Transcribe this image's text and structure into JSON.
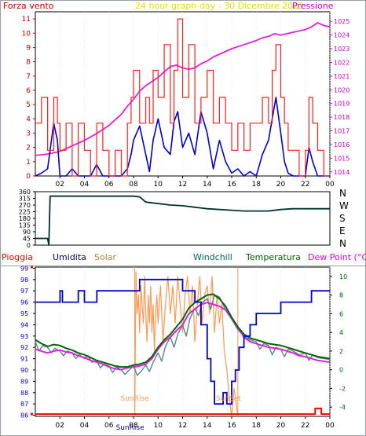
{
  "chart_data": [
    {
      "type": "line",
      "title": "24 hour graph day - 30 Dicembre 2021",
      "left_label": "Forza vento",
      "right_label": "Pressione",
      "x_ticks": [
        "02",
        "04",
        "06",
        "08",
        "10",
        "12",
        "14",
        "16",
        "18",
        "20",
        "22",
        "00"
      ],
      "y_left_ticks": [
        "0",
        "1",
        "2",
        "3",
        "4",
        "5",
        "6",
        "7",
        "8",
        "9",
        "10",
        "11"
      ],
      "y_left_range": [
        0,
        11.5
      ],
      "y_right_ticks": [
        "1014",
        "1015",
        "1016",
        "1017",
        "1018",
        "1019",
        "1020",
        "1021",
        "1022",
        "1023",
        "1024",
        "1025"
      ],
      "y_right_range": [
        1013.7,
        1025.7
      ],
      "colors": {
        "wind_max": "#ff2020",
        "wind_avg": "#0000cc",
        "pressure": "#e020e0",
        "axis_left": "#cc0000",
        "axis_right": "#cc00cc"
      },
      "series": [
        {
          "key": "pressure",
          "axis": "right",
          "x": [
            0,
            1,
            2,
            3,
            4,
            5,
            6,
            7,
            7.5,
            8,
            8.5,
            9,
            9.5,
            10,
            10.5,
            11,
            11.5,
            12,
            12.5,
            13,
            13.5,
            14,
            14.5,
            15,
            15.5,
            16,
            17,
            18,
            18.5,
            19,
            19.5,
            20,
            21,
            22,
            22.5,
            23,
            23.5,
            24
          ],
          "values": [
            1015.2,
            1015.3,
            1015.5,
            1015.9,
            1016.3,
            1016.8,
            1017.4,
            1018.2,
            1018.8,
            1019.3,
            1019.9,
            1020.3,
            1020.6,
            1020.9,
            1021.3,
            1021.7,
            1021.8,
            1021.6,
            1021.5,
            1021.6,
            1021.9,
            1022.1,
            1022.4,
            1022.6,
            1022.8,
            1023.0,
            1023.3,
            1023.6,
            1023.8,
            1023.9,
            1024.1,
            1024.0,
            1024.2,
            1024.4,
            1024.6,
            1024.9,
            1024.7,
            1024.6
          ]
        },
        {
          "key": "wind_avg",
          "axis": "left",
          "x": [
            0,
            0.5,
            1,
            1.5,
            1.8,
            2,
            2.5,
            3,
            3.5,
            4,
            4.5,
            5,
            5.5,
            6,
            6.5,
            7,
            7.5,
            7.8,
            8,
            8.5,
            9,
            9.3,
            9.6,
            10,
            10.5,
            11,
            11.3,
            11.6,
            12,
            12.5,
            13,
            13.5,
            14,
            14.5,
            15,
            15.5,
            16,
            16.5,
            17,
            17.5,
            18,
            18.5,
            19,
            19.3,
            19.6,
            20,
            20.3,
            20.6,
            21,
            21.5,
            22,
            22.3,
            22.6,
            23,
            23.5,
            24
          ],
          "values": [
            0,
            0.2,
            0.5,
            3.7,
            2.5,
            0,
            0,
            0.5,
            0,
            0,
            0,
            0.8,
            0,
            0,
            0,
            0,
            0.5,
            1.5,
            2.5,
            3.5,
            1.5,
            0.3,
            2.5,
            4.0,
            2.0,
            1.5,
            3.8,
            4.5,
            2.0,
            3.0,
            1.5,
            4.5,
            3.0,
            0.5,
            2.5,
            1.0,
            0.2,
            0.5,
            0,
            0.3,
            0,
            1.5,
            2.5,
            4.0,
            5.5,
            3.0,
            1.0,
            0.2,
            0,
            0,
            0,
            2.0,
            1.0,
            0,
            0,
            0
          ]
        },
        {
          "key": "wind_max",
          "axis": "left",
          "x": [
            0,
            0.5,
            1,
            1.5,
            1.8,
            2,
            2.5,
            3,
            3.5,
            4,
            4.5,
            5,
            5.5,
            6,
            6.5,
            7,
            7.5,
            7.8,
            8,
            8.5,
            9,
            9.3,
            9.6,
            10,
            10.5,
            11,
            11.3,
            11.6,
            12,
            12.5,
            13,
            13.5,
            14,
            14.5,
            15,
            15.5,
            16,
            16.5,
            17,
            17.5,
            18,
            18.5,
            19,
            19.3,
            19.6,
            20,
            20.3,
            20.6,
            21,
            21.5,
            22,
            22.3,
            22.6,
            23,
            23.5,
            24
          ],
          "values": [
            3.7,
            5.5,
            1.8,
            5.5,
            3.7,
            1.8,
            3.7,
            0,
            3.7,
            1.8,
            0,
            3.7,
            1.8,
            0,
            1.8,
            0,
            3.7,
            5.5,
            7.4,
            3.7,
            5.5,
            3.7,
            7.4,
            5.5,
            9.2,
            3.7,
            7.4,
            11.0,
            5.5,
            9.2,
            3.7,
            5.5,
            7.4,
            3.7,
            5.5,
            3.7,
            1.8,
            3.7,
            1.8,
            3.7,
            3.7,
            5.5,
            3.7,
            7.4,
            9.2,
            5.5,
            3.7,
            1.8,
            1.8,
            0,
            1.8,
            5.5,
            3.7,
            1.8,
            0,
            0
          ]
        }
      ]
    },
    {
      "type": "line",
      "y_ticks": [
        "360",
        "315",
        "270",
        "225",
        "180",
        "135",
        "90",
        "45",
        "0"
      ],
      "y_range": [
        0,
        360
      ],
      "compass": [
        "N",
        "W",
        "S",
        "E",
        "N"
      ],
      "colors": {
        "direction": "#003030",
        "axis": "#cc0000"
      },
      "series": [
        {
          "key": "direction",
          "x": [
            0,
            1,
            1.1,
            1.2,
            8,
            8.5,
            9,
            9.5,
            10,
            11,
            12,
            13,
            14,
            15,
            16,
            17,
            18,
            19,
            20,
            21,
            22,
            23,
            24
          ],
          "values": [
            45,
            45,
            0,
            330,
            330,
            325,
            290,
            285,
            280,
            270,
            265,
            255,
            245,
            240,
            235,
            230,
            230,
            230,
            240,
            245,
            245,
            245,
            245
          ]
        }
      ]
    },
    {
      "type": "line",
      "labels": {
        "rain": "Pioggia",
        "humidity": "Umidita",
        "solar": "Solar",
        "windchill": "Windchill",
        "temperature": "Temperatura",
        "dewpoint": "Dew Point (°C)"
      },
      "x_ticks": [
        "02",
        "04",
        "06",
        "08",
        "10",
        "12",
        "14",
        "16",
        "18",
        "20",
        "22",
        "00"
      ],
      "y_left_ticks": [
        "86",
        "87",
        "88",
        "89",
        "90",
        "91",
        "92",
        "93",
        "94",
        "95",
        "96",
        "97",
        "98",
        "99"
      ],
      "y_left_range": [
        85.9,
        99.1
      ],
      "y_right_ticks": [
        "10",
        "8",
        "6",
        "4",
        "2",
        "0",
        "-2",
        "-4"
      ],
      "y_right_range": [
        -5,
        11
      ],
      "sunrise_label": "SunRise",
      "sunset_label": "SunSet",
      "sunrise_hour": 8.1,
      "sunset_hour": 16.5,
      "colors": {
        "rain": "#ff0000",
        "humidity": "#0000cc",
        "solar": "#ff9955",
        "windchill": "#558888",
        "temperature": "#006600",
        "dewpoint": "#e020e0",
        "label_rain": "#ff0000",
        "label_humidity": "#000080",
        "label_solar": "#aa8844",
        "label_windchill": "#006666",
        "label_temperature": "#006600",
        "label_dewpoint": "#ee00ee"
      },
      "series": [
        {
          "key": "humidity",
          "axis": "left",
          "x": [
            0,
            2,
            2.01,
            2.2,
            2.21,
            3,
            3.5,
            4,
            4.5,
            5,
            5.01,
            6,
            8,
            8.5,
            9,
            9.5,
            10,
            11,
            12,
            12.5,
            13,
            13.5,
            14,
            14.3,
            14.6,
            15,
            15.3,
            15.6,
            16,
            16.3,
            16.6,
            17,
            17.5,
            18,
            19,
            20,
            21,
            22,
            22.5,
            23,
            24
          ],
          "values": [
            96,
            96,
            97,
            97,
            96,
            96,
            97,
            96,
            96,
            96,
            97,
            97,
            97,
            98,
            98,
            98,
            98,
            98,
            97,
            97,
            96,
            94,
            91,
            89,
            87,
            87,
            88,
            87,
            89,
            90,
            92,
            93,
            94,
            95,
            95,
            96,
            96,
            96,
            97,
            97,
            97
          ]
        },
        {
          "key": "dewpoint",
          "axis": "right",
          "x": [
            0,
            0.5,
            1,
            1.5,
            2,
            2.5,
            3,
            3.5,
            4,
            4.5,
            5,
            5.5,
            6,
            6.5,
            7,
            7.5,
            8,
            8.5,
            9,
            9.5,
            10,
            10.5,
            11,
            11.5,
            12,
            12.5,
            13,
            13.5,
            14,
            14.5,
            15,
            15.5,
            16,
            16.5,
            17,
            17.5,
            18,
            18.5,
            19,
            19.5,
            20,
            20.5,
            21,
            21.5,
            22,
            22.5,
            23,
            23.5,
            24
          ],
          "values": [
            2.2,
            2.0,
            1.8,
            2.0,
            2.1,
            1.9,
            1.8,
            1.5,
            1.3,
            1.0,
            0.8,
            0.6,
            0.3,
            0.1,
            0.0,
            0.2,
            0.3,
            0.4,
            0.6,
            1.2,
            2.2,
            3.0,
            3.5,
            4.2,
            4.8,
            6.0,
            6.5,
            7.0,
            7.2,
            7.0,
            6.8,
            6.4,
            5.5,
            4.5,
            3.5,
            3.0,
            2.8,
            2.6,
            2.4,
            2.3,
            2.2,
            2.0,
            1.8,
            1.5,
            1.4,
            1.2,
            1.0,
            0.9,
            0.8
          ]
        },
        {
          "key": "temperature",
          "axis": "right",
          "x": [
            0,
            0.5,
            1,
            1.5,
            2,
            2.5,
            3,
            3.5,
            4,
            4.5,
            5,
            5.5,
            6,
            6.5,
            7,
            7.5,
            8,
            8.5,
            9,
            9.5,
            10,
            10.5,
            11,
            11.5,
            12,
            12.5,
            13,
            13.5,
            14,
            14.5,
            15,
            15.5,
            16,
            16.5,
            17,
            17.5,
            18,
            18.5,
            19,
            19.5,
            20,
            20.5,
            21,
            21.5,
            22,
            22.5,
            23,
            23.5,
            24
          ],
          "values": [
            3.2,
            2.8,
            2.5,
            2.7,
            2.6,
            2.3,
            2.1,
            1.8,
            1.6,
            1.3,
            1.0,
            0.8,
            0.6,
            0.4,
            0.3,
            0.3,
            0.5,
            0.6,
            0.8,
            1.4,
            2.4,
            3.2,
            3.8,
            4.6,
            5.4,
            6.6,
            7.2,
            7.6,
            8.0,
            8.1,
            7.6,
            6.8,
            5.6,
            4.6,
            3.8,
            3.4,
            3.2,
            3.0,
            2.8,
            2.7,
            2.6,
            2.4,
            2.2,
            2.0,
            1.8,
            1.6,
            1.4,
            1.3,
            1.2
          ]
        },
        {
          "key": "windchill",
          "axis": "right",
          "x": [
            0,
            0.3,
            0.6,
            1,
            1.3,
            1.6,
            2,
            2.3,
            2.6,
            3,
            3.3,
            3.6,
            4,
            4.3,
            4.6,
            5,
            5.3,
            5.6,
            6,
            6.3,
            6.6,
            7,
            7.3,
            7.6,
            8,
            8.3,
            8.6,
            9,
            9.3,
            9.6,
            10,
            10.3,
            10.6,
            11,
            11.3,
            11.6,
            12,
            12.3,
            12.6,
            13,
            13.3,
            13.6,
            14,
            14.3,
            14.6,
            15,
            15.5,
            16,
            16.5,
            17,
            17.5,
            18,
            18.3,
            18.6,
            19,
            19.3,
            19.6,
            20,
            20.3,
            20.6,
            21,
            21.5,
            22,
            22.3,
            22.6,
            23,
            23.5,
            24
          ],
          "values": [
            3.0,
            2.0,
            2.6,
            2.4,
            1.8,
            2.3,
            2.0,
            1.5,
            2.0,
            1.8,
            1.2,
            1.6,
            1.2,
            1.5,
            0.8,
            0.9,
            0.2,
            0.6,
            0.4,
            -0.3,
            0.3,
            0.0,
            -0.5,
            -0.1,
            0.4,
            -0.6,
            -0.2,
            0.5,
            -0.2,
            0.8,
            1.8,
            0.9,
            2.5,
            3.5,
            2.4,
            3.8,
            4.8,
            3.6,
            5.5,
            6.6,
            5.8,
            7.2,
            7.6,
            6.5,
            8.0,
            7.8,
            6.4,
            5.4,
            4.3,
            3.6,
            3.2,
            3.0,
            2.2,
            2.8,
            2.6,
            1.6,
            2.4,
            2.2,
            1.4,
            2.2,
            2.0,
            1.6,
            1.8,
            1.0,
            1.6,
            1.3,
            1.2,
            1.1
          ]
        },
        {
          "key": "solar",
          "axis": "right",
          "x": [
            8.1,
            8.2,
            8.3,
            8.4,
            8.5,
            8.6,
            8.7,
            8.8,
            8.9,
            9,
            9.1,
            9.2,
            9.3,
            9.4,
            9.5,
            9.6,
            9.7,
            9.8,
            9.9,
            10,
            10.2,
            10.4,
            10.6,
            10.8,
            11,
            11.2,
            11.4,
            11.6,
            11.8,
            12,
            12.2,
            12.4,
            12.6,
            12.8,
            13,
            13.2,
            13.4,
            13.6,
            13.8,
            14,
            14.2,
            14.4,
            14.6,
            14.8,
            15,
            15.2,
            15.4,
            15.6,
            15.8,
            16,
            16.2,
            16.4,
            16.5
          ],
          "values": [
            -5,
            10.5,
            6,
            8,
            4,
            9,
            7,
            5,
            10,
            6,
            3,
            8,
            5,
            9,
            4,
            7,
            2,
            6,
            8,
            5,
            9,
            3,
            7,
            10,
            6,
            9,
            5,
            10,
            7,
            4,
            8,
            10,
            6,
            9,
            3,
            7,
            10,
            5,
            8,
            9,
            6,
            10,
            4,
            8,
            5,
            7,
            2,
            0,
            -3,
            -5,
            -2,
            -4,
            -5
          ]
        },
        {
          "key": "rain",
          "axis": "left",
          "x": [
            0,
            22.8,
            22.8,
            23.3,
            23.3,
            24
          ],
          "values": [
            86.1,
            86.1,
            86.6,
            86.6,
            86.1,
            86.1
          ]
        }
      ]
    }
  ]
}
